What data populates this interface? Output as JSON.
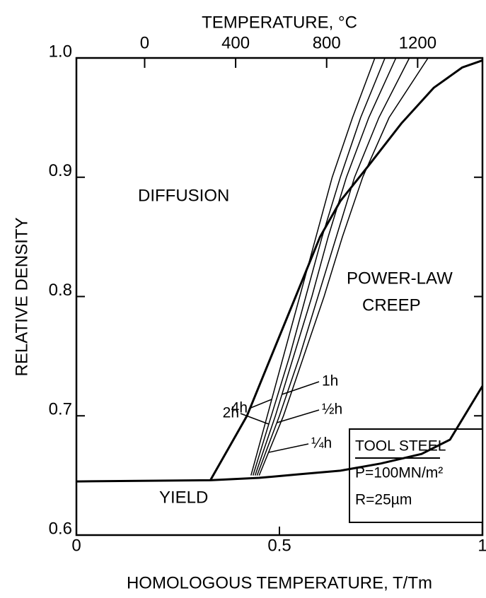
{
  "chart_data": {
    "type": "line",
    "xlabel": "HOMOLOGOUS TEMPERATURE, T/Tm",
    "ylabel": "RELATIVE DENSITY",
    "x2label": "TEMPERATURE, °C",
    "xlim": [
      0,
      1
    ],
    "xticks": [
      0,
      0.5,
      1
    ],
    "x2lim": [
      -300,
      1485
    ],
    "x2ticks": [
      0,
      400,
      800,
      1200
    ],
    "ylim": [
      0.6,
      1
    ],
    "yticks": [
      0.6,
      0.7,
      0.8,
      0.9,
      {
        "value": 1,
        "label": "1.0"
      }
    ],
    "boundaries": [
      {
        "color": "#000000",
        "x": [
          0,
          0.33,
          0.45,
          0.55,
          0.65,
          0.75,
          0.85,
          0.92,
          1
        ],
        "values": [
          0.645,
          0.646,
          0.648,
          0.651,
          0.654,
          0.66,
          0.668,
          0.68,
          0.725
        ]
      },
      {
        "color": "#000000",
        "x": [
          0.33,
          0.37,
          0.42,
          0.48,
          0.54,
          0.6,
          0.65,
          0.72,
          0.8,
          0.88,
          0.95,
          1
        ],
        "values": [
          0.646,
          0.67,
          0.7,
          0.75,
          0.8,
          0.85,
          0.88,
          0.91,
          0.945,
          0.975,
          0.992,
          0.998
        ]
      }
    ],
    "series": [
      {
        "name": "4h",
        "color": "#000000",
        "x": [
          0.43,
          0.47,
          0.51,
          0.55,
          0.59,
          0.63,
          0.68,
          0.735
        ],
        "values": [
          0.65,
          0.7,
          0.75,
          0.8,
          0.85,
          0.9,
          0.95,
          1
        ]
      },
      {
        "name": "2h",
        "color": "#000000",
        "x": [
          0.435,
          0.48,
          0.525,
          0.565,
          0.605,
          0.65,
          0.7,
          0.76
        ],
        "values": [
          0.65,
          0.7,
          0.75,
          0.8,
          0.85,
          0.9,
          0.95,
          1
        ]
      },
      {
        "name": "1h",
        "color": "#000000",
        "x": [
          0.44,
          0.49,
          0.535,
          0.58,
          0.62,
          0.665,
          0.72,
          0.787
        ],
        "values": [
          0.65,
          0.7,
          0.75,
          0.8,
          0.85,
          0.9,
          0.95,
          1
        ]
      },
      {
        "name": "½h",
        "color": "#000000",
        "x": [
          0.445,
          0.5,
          0.55,
          0.595,
          0.64,
          0.685,
          0.745,
          0.82
        ],
        "values": [
          0.65,
          0.7,
          0.75,
          0.8,
          0.85,
          0.9,
          0.95,
          1
        ]
      },
      {
        "name": "¼h",
        "color": "#000000",
        "x": [
          0.45,
          0.51,
          0.56,
          0.61,
          0.655,
          0.705,
          0.77,
          0.866
        ],
        "values": [
          0.65,
          0.7,
          0.75,
          0.8,
          0.85,
          0.9,
          0.95,
          1
        ]
      }
    ],
    "annotations": [
      "DIFFUSION",
      "POWER-LAW",
      "CREEP",
      "YIELD"
    ],
    "box": [
      "TOOL STEEL",
      "P=100MN/m²",
      "R=25µm"
    ]
  }
}
